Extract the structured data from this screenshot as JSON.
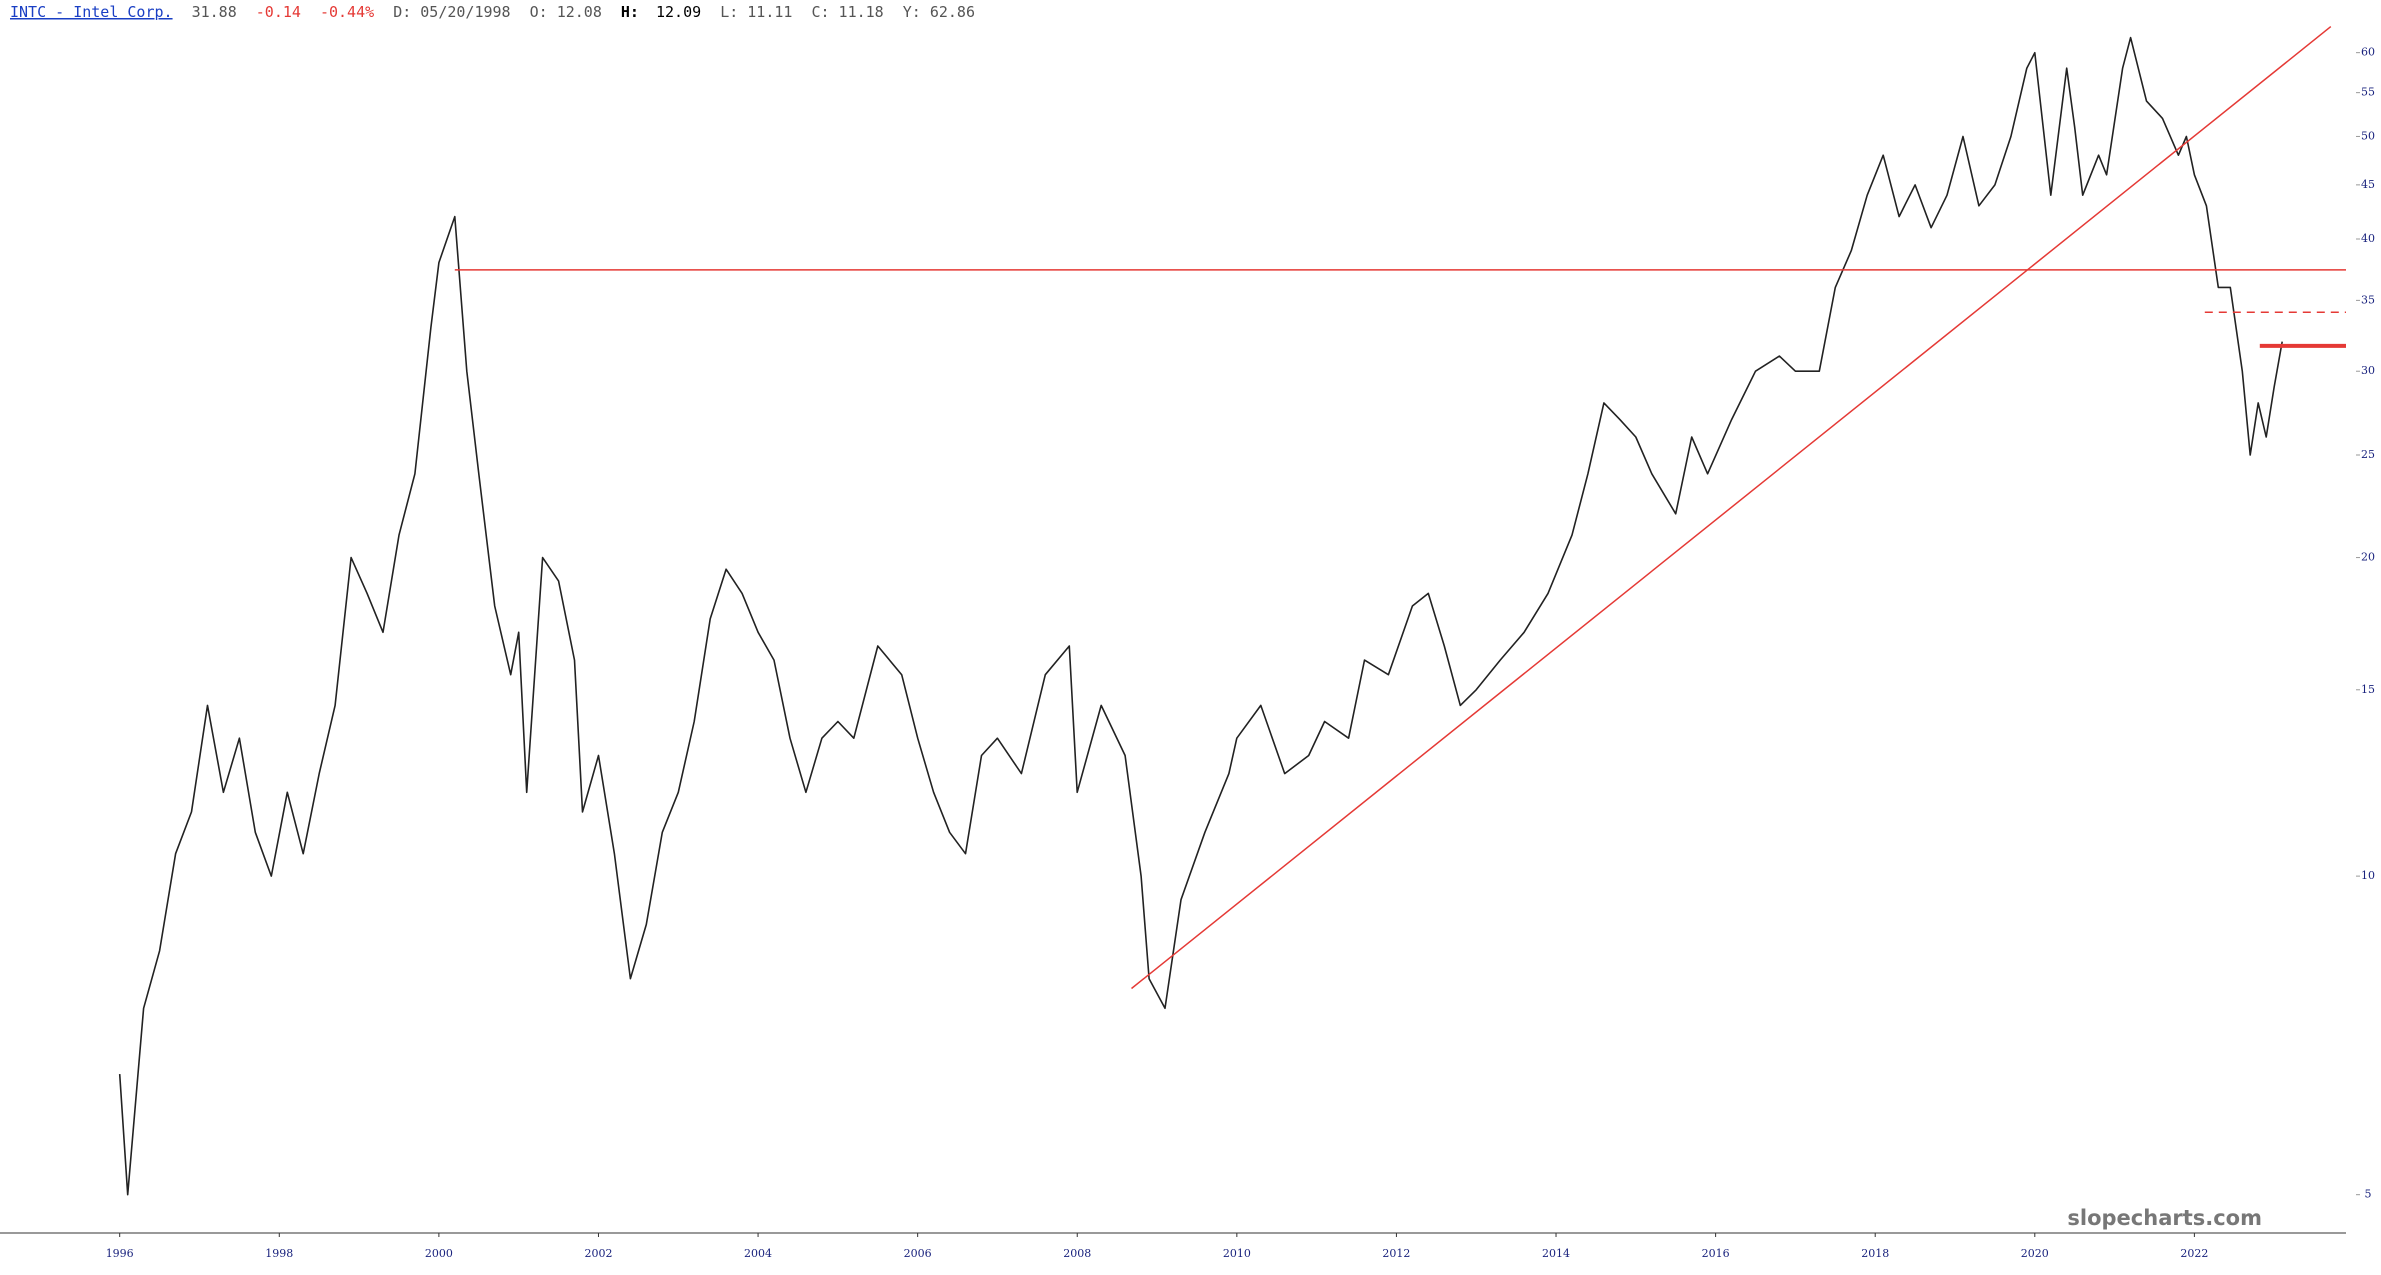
{
  "header": {
    "symbol": "INTC - Intel Corp.",
    "last": "31.88",
    "change": "-0.14",
    "change_pct": "-0.44%",
    "date": "D: 05/20/1998",
    "open": "O: 12.08",
    "high_label": "H:",
    "high": "12.09",
    "low": "L: 11.11",
    "close": "C: 11.18",
    "y": "Y: 62.86"
  },
  "watermark": "slopecharts.com",
  "chart_data": {
    "type": "line",
    "log_y": true,
    "color": "#222222",
    "x": [
      1996.0,
      1996.1,
      1996.3,
      1996.5,
      1996.7,
      1996.9,
      1997.1,
      1997.3,
      1997.5,
      1997.7,
      1997.9,
      1998.1,
      1998.3,
      1998.5,
      1998.7,
      1998.9,
      1999.1,
      1999.3,
      1999.5,
      1999.7,
      1999.9,
      2000.0,
      2000.2,
      2000.35,
      2000.5,
      2000.7,
      2000.9,
      2001.0,
      2001.1,
      2001.3,
      2001.5,
      2001.7,
      2001.8,
      2002.0,
      2002.2,
      2002.4,
      2002.6,
      2002.8,
      2003.0,
      2003.2,
      2003.4,
      2003.6,
      2003.8,
      2004.0,
      2004.2,
      2004.4,
      2004.6,
      2004.8,
      2005.0,
      2005.2,
      2005.5,
      2005.8,
      2006.0,
      2006.2,
      2006.4,
      2006.6,
      2006.8,
      2007.0,
      2007.3,
      2007.6,
      2007.9,
      2008.0,
      2008.3,
      2008.6,
      2008.8,
      2008.9,
      2009.1,
      2009.3,
      2009.6,
      2009.9,
      2010.0,
      2010.3,
      2010.6,
      2010.9,
      2011.1,
      2011.4,
      2011.6,
      2011.9,
      2012.2,
      2012.4,
      2012.6,
      2012.8,
      2013.0,
      2013.3,
      2013.6,
      2013.9,
      2014.2,
      2014.4,
      2014.6,
      2014.8,
      2015.0,
      2015.2,
      2015.5,
      2015.7,
      2015.9,
      2016.2,
      2016.5,
      2016.8,
      2017.0,
      2017.3,
      2017.5,
      2017.7,
      2017.9,
      2018.1,
      2018.3,
      2018.5,
      2018.7,
      2018.9,
      2019.1,
      2019.3,
      2019.5,
      2019.7,
      2019.9,
      2020.0,
      2020.2,
      2020.4,
      2020.5,
      2020.6,
      2020.8,
      2020.9,
      2021.1,
      2021.2,
      2021.4,
      2021.6,
      2021.8,
      2021.9,
      2022.0,
      2022.15,
      2022.3,
      2022.45,
      2022.6,
      2022.7,
      2022.8,
      2022.9,
      2023.0,
      2023.1
    ],
    "values": [
      6.5,
      5.0,
      7.5,
      8.5,
      10.5,
      11.5,
      14.5,
      12,
      13.5,
      11,
      10,
      12,
      10.5,
      12.5,
      14.5,
      20,
      18.5,
      17,
      21,
      24,
      33,
      38,
      42,
      30,
      24,
      18,
      15.5,
      17,
      12,
      20,
      19,
      16,
      11.5,
      13,
      10.5,
      8,
      9,
      11,
      12,
      14,
      17.5,
      19.5,
      18.5,
      17,
      16,
      13.5,
      12,
      13.5,
      14,
      13.5,
      16.5,
      15.5,
      13.5,
      12,
      11,
      10.5,
      13,
      13.5,
      12.5,
      15.5,
      16.5,
      12,
      14.5,
      13,
      10,
      8,
      7.5,
      9.5,
      11,
      12.5,
      13.5,
      14.5,
      12.5,
      13,
      14,
      13.5,
      16,
      15.5,
      18,
      18.5,
      16.5,
      14.5,
      15,
      16,
      17,
      18.5,
      21,
      24,
      28,
      27,
      26,
      24,
      22,
      26,
      24,
      27,
      30,
      31,
      30,
      30,
      36,
      39,
      44,
      48,
      42,
      45,
      41,
      44,
      50,
      43,
      45,
      50,
      58,
      60,
      44,
      58,
      51,
      44,
      48,
      46,
      58,
      62,
      54,
      52,
      48,
      50,
      46,
      43,
      36,
      36,
      30,
      25,
      28,
      26,
      29,
      32
    ],
    "xlim": [
      1994.5,
      2023.9
    ],
    "xticks": [
      1996,
      1998,
      2000,
      2002,
      2004,
      2006,
      2008,
      2010,
      2012,
      2014,
      2016,
      2018,
      2020,
      2022
    ],
    "ylim": [
      4.6,
      64
    ],
    "yticks": [
      5,
      10,
      15,
      20,
      25,
      30,
      35,
      40,
      45,
      50,
      55,
      60
    ],
    "lines": [
      {
        "x": [
          2000.2,
          2023.9
        ],
        "values": [
          37.4,
          37.4
        ],
        "color": "#e53935",
        "style": "solid"
      },
      {
        "x": [
          2008.68,
          2023.71
        ],
        "values": [
          7.83,
          63.5
        ],
        "color": "#e53935",
        "style": "solid"
      },
      {
        "x": [
          2022.13,
          2023.9
        ],
        "values": [
          34.1,
          34.1
        ],
        "color": "#e53935",
        "style": "dashed"
      },
      {
        "x": [
          2022.82,
          2023.9
        ],
        "values": [
          31.7,
          31.7
        ],
        "color": "#e53935",
        "style": "thick"
      }
    ]
  }
}
